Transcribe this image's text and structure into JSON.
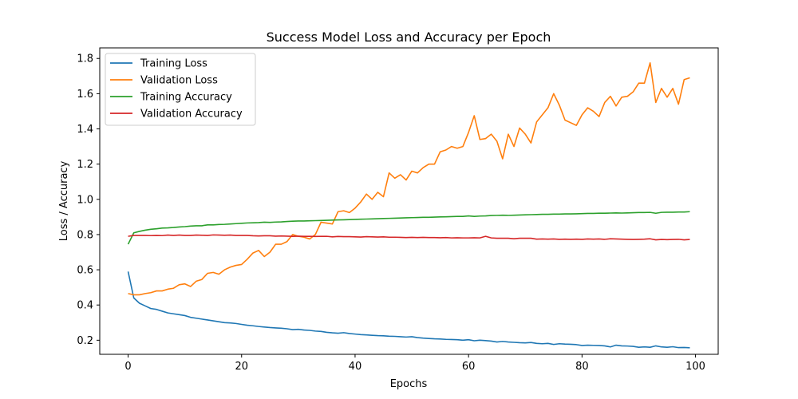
{
  "chart_data": {
    "type": "line",
    "title": "Success Model Loss and Accuracy per Epoch",
    "xlabel": "Epochs",
    "ylabel": "Loss / Accuracy",
    "xlim": [
      -5,
      104
    ],
    "ylim": [
      0.12,
      1.86
    ],
    "xticks": [
      "0",
      "20",
      "40",
      "60",
      "80",
      "100"
    ],
    "yticks": [
      "0.2",
      "0.4",
      "0.6",
      "0.8",
      "1.0",
      "1.2",
      "1.4",
      "1.6",
      "1.8"
    ],
    "grid": false,
    "legend_position": "top-left",
    "series": [
      {
        "name": "Training Loss",
        "color": "#1f77b4",
        "values": [
          0.59,
          0.44,
          0.41,
          0.395,
          0.38,
          0.375,
          0.365,
          0.355,
          0.35,
          0.345,
          0.34,
          0.33,
          0.325,
          0.32,
          0.315,
          0.31,
          0.305,
          0.3,
          0.298,
          0.295,
          0.29,
          0.285,
          0.282,
          0.278,
          0.275,
          0.272,
          0.27,
          0.268,
          0.265,
          0.26,
          0.262,
          0.258,
          0.256,
          0.252,
          0.25,
          0.245,
          0.242,
          0.24,
          0.243,
          0.238,
          0.235,
          0.232,
          0.23,
          0.228,
          0.226,
          0.225,
          0.223,
          0.222,
          0.22,
          0.218,
          0.22,
          0.215,
          0.212,
          0.21,
          0.208,
          0.207,
          0.205,
          0.204,
          0.203,
          0.2,
          0.203,
          0.197,
          0.2,
          0.198,
          0.195,
          0.19,
          0.193,
          0.19,
          0.188,
          0.186,
          0.185,
          0.187,
          0.182,
          0.18,
          0.182,
          0.176,
          0.18,
          0.178,
          0.177,
          0.175,
          0.17,
          0.172,
          0.171,
          0.17,
          0.168,
          0.162,
          0.172,
          0.168,
          0.167,
          0.165,
          0.16,
          0.162,
          0.16,
          0.168,
          0.162,
          0.16,
          0.163,
          0.158,
          0.159,
          0.157
        ]
      },
      {
        "name": "Validation Loss",
        "color": "#ff7f0e",
        "values": [
          0.465,
          0.458,
          0.458,
          0.465,
          0.47,
          0.48,
          0.48,
          0.49,
          0.495,
          0.515,
          0.52,
          0.505,
          0.535,
          0.545,
          0.58,
          0.585,
          0.575,
          0.6,
          0.615,
          0.625,
          0.63,
          0.66,
          0.695,
          0.71,
          0.675,
          0.7,
          0.745,
          0.745,
          0.76,
          0.8,
          0.79,
          0.785,
          0.775,
          0.8,
          0.87,
          0.865,
          0.86,
          0.93,
          0.935,
          0.925,
          0.95,
          0.985,
          1.03,
          1.0,
          1.04,
          1.015,
          1.15,
          1.12,
          1.14,
          1.11,
          1.16,
          1.15,
          1.18,
          1.2,
          1.2,
          1.27,
          1.28,
          1.3,
          1.29,
          1.3,
          1.38,
          1.475,
          1.34,
          1.345,
          1.37,
          1.33,
          1.23,
          1.37,
          1.3,
          1.405,
          1.37,
          1.32,
          1.44,
          1.48,
          1.52,
          1.6,
          1.535,
          1.45,
          1.435,
          1.42,
          1.48,
          1.52,
          1.5,
          1.47,
          1.55,
          1.585,
          1.53,
          1.58,
          1.585,
          1.61,
          1.66,
          1.66,
          1.775,
          1.55,
          1.63,
          1.58,
          1.63,
          1.54,
          1.68,
          1.69
        ]
      },
      {
        "name": "Training Accuracy",
        "color": "#2ca02c",
        "values": [
          0.745,
          0.81,
          0.818,
          0.825,
          0.83,
          0.833,
          0.837,
          0.838,
          0.84,
          0.843,
          0.845,
          0.848,
          0.85,
          0.85,
          0.855,
          0.855,
          0.857,
          0.858,
          0.86,
          0.862,
          0.864,
          0.866,
          0.867,
          0.868,
          0.87,
          0.869,
          0.871,
          0.872,
          0.874,
          0.876,
          0.877,
          0.877,
          0.878,
          0.879,
          0.88,
          0.881,
          0.882,
          0.883,
          0.884,
          0.885,
          0.886,
          0.887,
          0.888,
          0.889,
          0.89,
          0.891,
          0.892,
          0.893,
          0.894,
          0.895,
          0.896,
          0.897,
          0.898,
          0.898,
          0.899,
          0.9,
          0.901,
          0.902,
          0.903,
          0.903,
          0.906,
          0.903,
          0.905,
          0.906,
          0.908,
          0.909,
          0.91,
          0.909,
          0.91,
          0.911,
          0.912,
          0.913,
          0.914,
          0.915,
          0.915,
          0.916,
          0.916,
          0.917,
          0.917,
          0.918,
          0.919,
          0.92,
          0.92,
          0.921,
          0.921,
          0.922,
          0.923,
          0.922,
          0.923,
          0.924,
          0.925,
          0.925,
          0.926,
          0.921,
          0.926,
          0.927,
          0.927,
          0.928,
          0.928,
          0.93
        ]
      },
      {
        "name": "Validation Accuracy",
        "color": "#d62728",
        "values": [
          0.79,
          0.795,
          0.795,
          0.795,
          0.794,
          0.795,
          0.794,
          0.797,
          0.795,
          0.797,
          0.795,
          0.795,
          0.797,
          0.796,
          0.795,
          0.798,
          0.797,
          0.796,
          0.797,
          0.795,
          0.795,
          0.795,
          0.793,
          0.792,
          0.793,
          0.793,
          0.791,
          0.792,
          0.791,
          0.79,
          0.791,
          0.79,
          0.79,
          0.789,
          0.79,
          0.79,
          0.787,
          0.789,
          0.788,
          0.788,
          0.787,
          0.786,
          0.788,
          0.787,
          0.786,
          0.787,
          0.785,
          0.785,
          0.784,
          0.783,
          0.784,
          0.783,
          0.784,
          0.783,
          0.783,
          0.782,
          0.783,
          0.781,
          0.782,
          0.781,
          0.781,
          0.782,
          0.781,
          0.79,
          0.781,
          0.779,
          0.779,
          0.779,
          0.776,
          0.779,
          0.779,
          0.779,
          0.774,
          0.775,
          0.774,
          0.775,
          0.773,
          0.774,
          0.773,
          0.774,
          0.773,
          0.775,
          0.774,
          0.775,
          0.773,
          0.776,
          0.775,
          0.774,
          0.773,
          0.772,
          0.773,
          0.774,
          0.776,
          0.77,
          0.772,
          0.771,
          0.772,
          0.773,
          0.77,
          0.772
        ]
      }
    ]
  }
}
